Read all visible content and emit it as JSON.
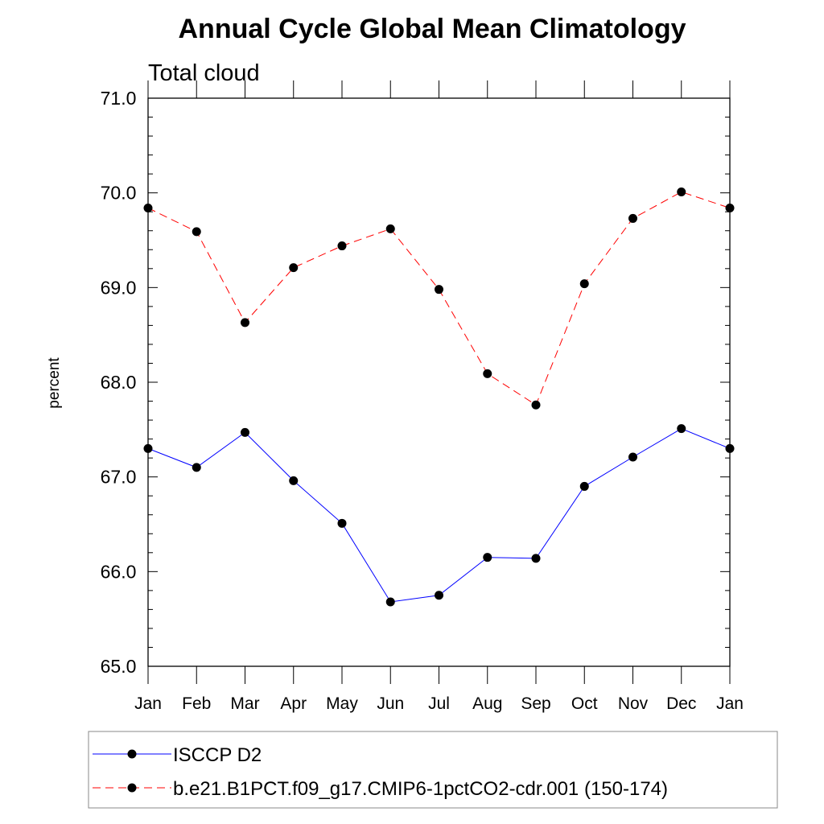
{
  "chart_data": {
    "type": "line",
    "title": "Annual Cycle Global Mean Climatology",
    "subtitle": "Total cloud",
    "xlabel": "",
    "ylabel": "percent",
    "ylim": [
      65.0,
      71.0
    ],
    "yticks": [
      "65.0",
      "66.0",
      "67.0",
      "68.0",
      "69.0",
      "70.0",
      "71.0"
    ],
    "categories": [
      "Jan",
      "Feb",
      "Mar",
      "Apr",
      "May",
      "Jun",
      "Jul",
      "Aug",
      "Sep",
      "Oct",
      "Nov",
      "Dec",
      "Jan"
    ],
    "series": [
      {
        "name": "ISCCP D2",
        "color": "#0000ff",
        "dash": "solid",
        "values": [
          67.3,
          67.1,
          67.47,
          66.96,
          66.51,
          65.68,
          65.75,
          66.15,
          66.14,
          66.9,
          67.21,
          67.51,
          67.3
        ]
      },
      {
        "name": "b.e21.B1PCT.f09_g17.CMIP6-1pctCO2-cdr.001 (150-174)",
        "color": "#ff0000",
        "dash": "dashed",
        "values": [
          69.84,
          69.59,
          68.63,
          69.21,
          69.44,
          69.62,
          68.98,
          68.09,
          67.76,
          69.04,
          69.73,
          70.01,
          69.84
        ]
      }
    ],
    "legend_position": "bottom",
    "marker_color": "#000000"
  }
}
